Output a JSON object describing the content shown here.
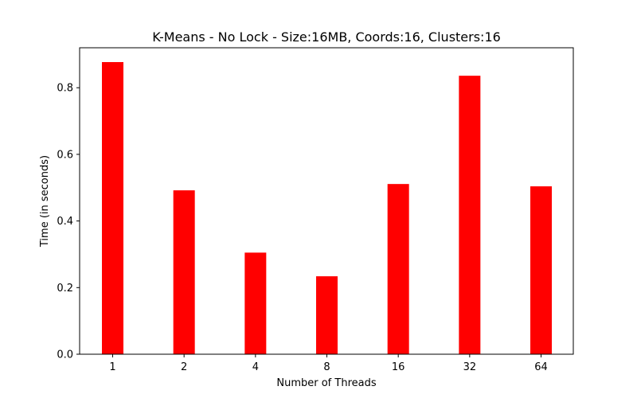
{
  "chart_data": {
    "type": "bar",
    "title": "K-Means - No Lock - Size:16MB, Coords:16, Clusters:16",
    "xlabel": "Number of Threads",
    "ylabel": "Time (in seconds)",
    "categories": [
      "1",
      "2",
      "4",
      "8",
      "16",
      "32",
      "64"
    ],
    "values": [
      0.877,
      0.492,
      0.305,
      0.234,
      0.511,
      0.836,
      0.504
    ],
    "ylim": [
      0,
      0.92
    ],
    "yticks": [
      0.0,
      0.2,
      0.4,
      0.6,
      0.8
    ],
    "ytick_labels": [
      "0.0",
      "0.2",
      "0.4",
      "0.6",
      "0.8"
    ],
    "bar_color": "#ff0000",
    "grid": false,
    "legend": "none"
  }
}
